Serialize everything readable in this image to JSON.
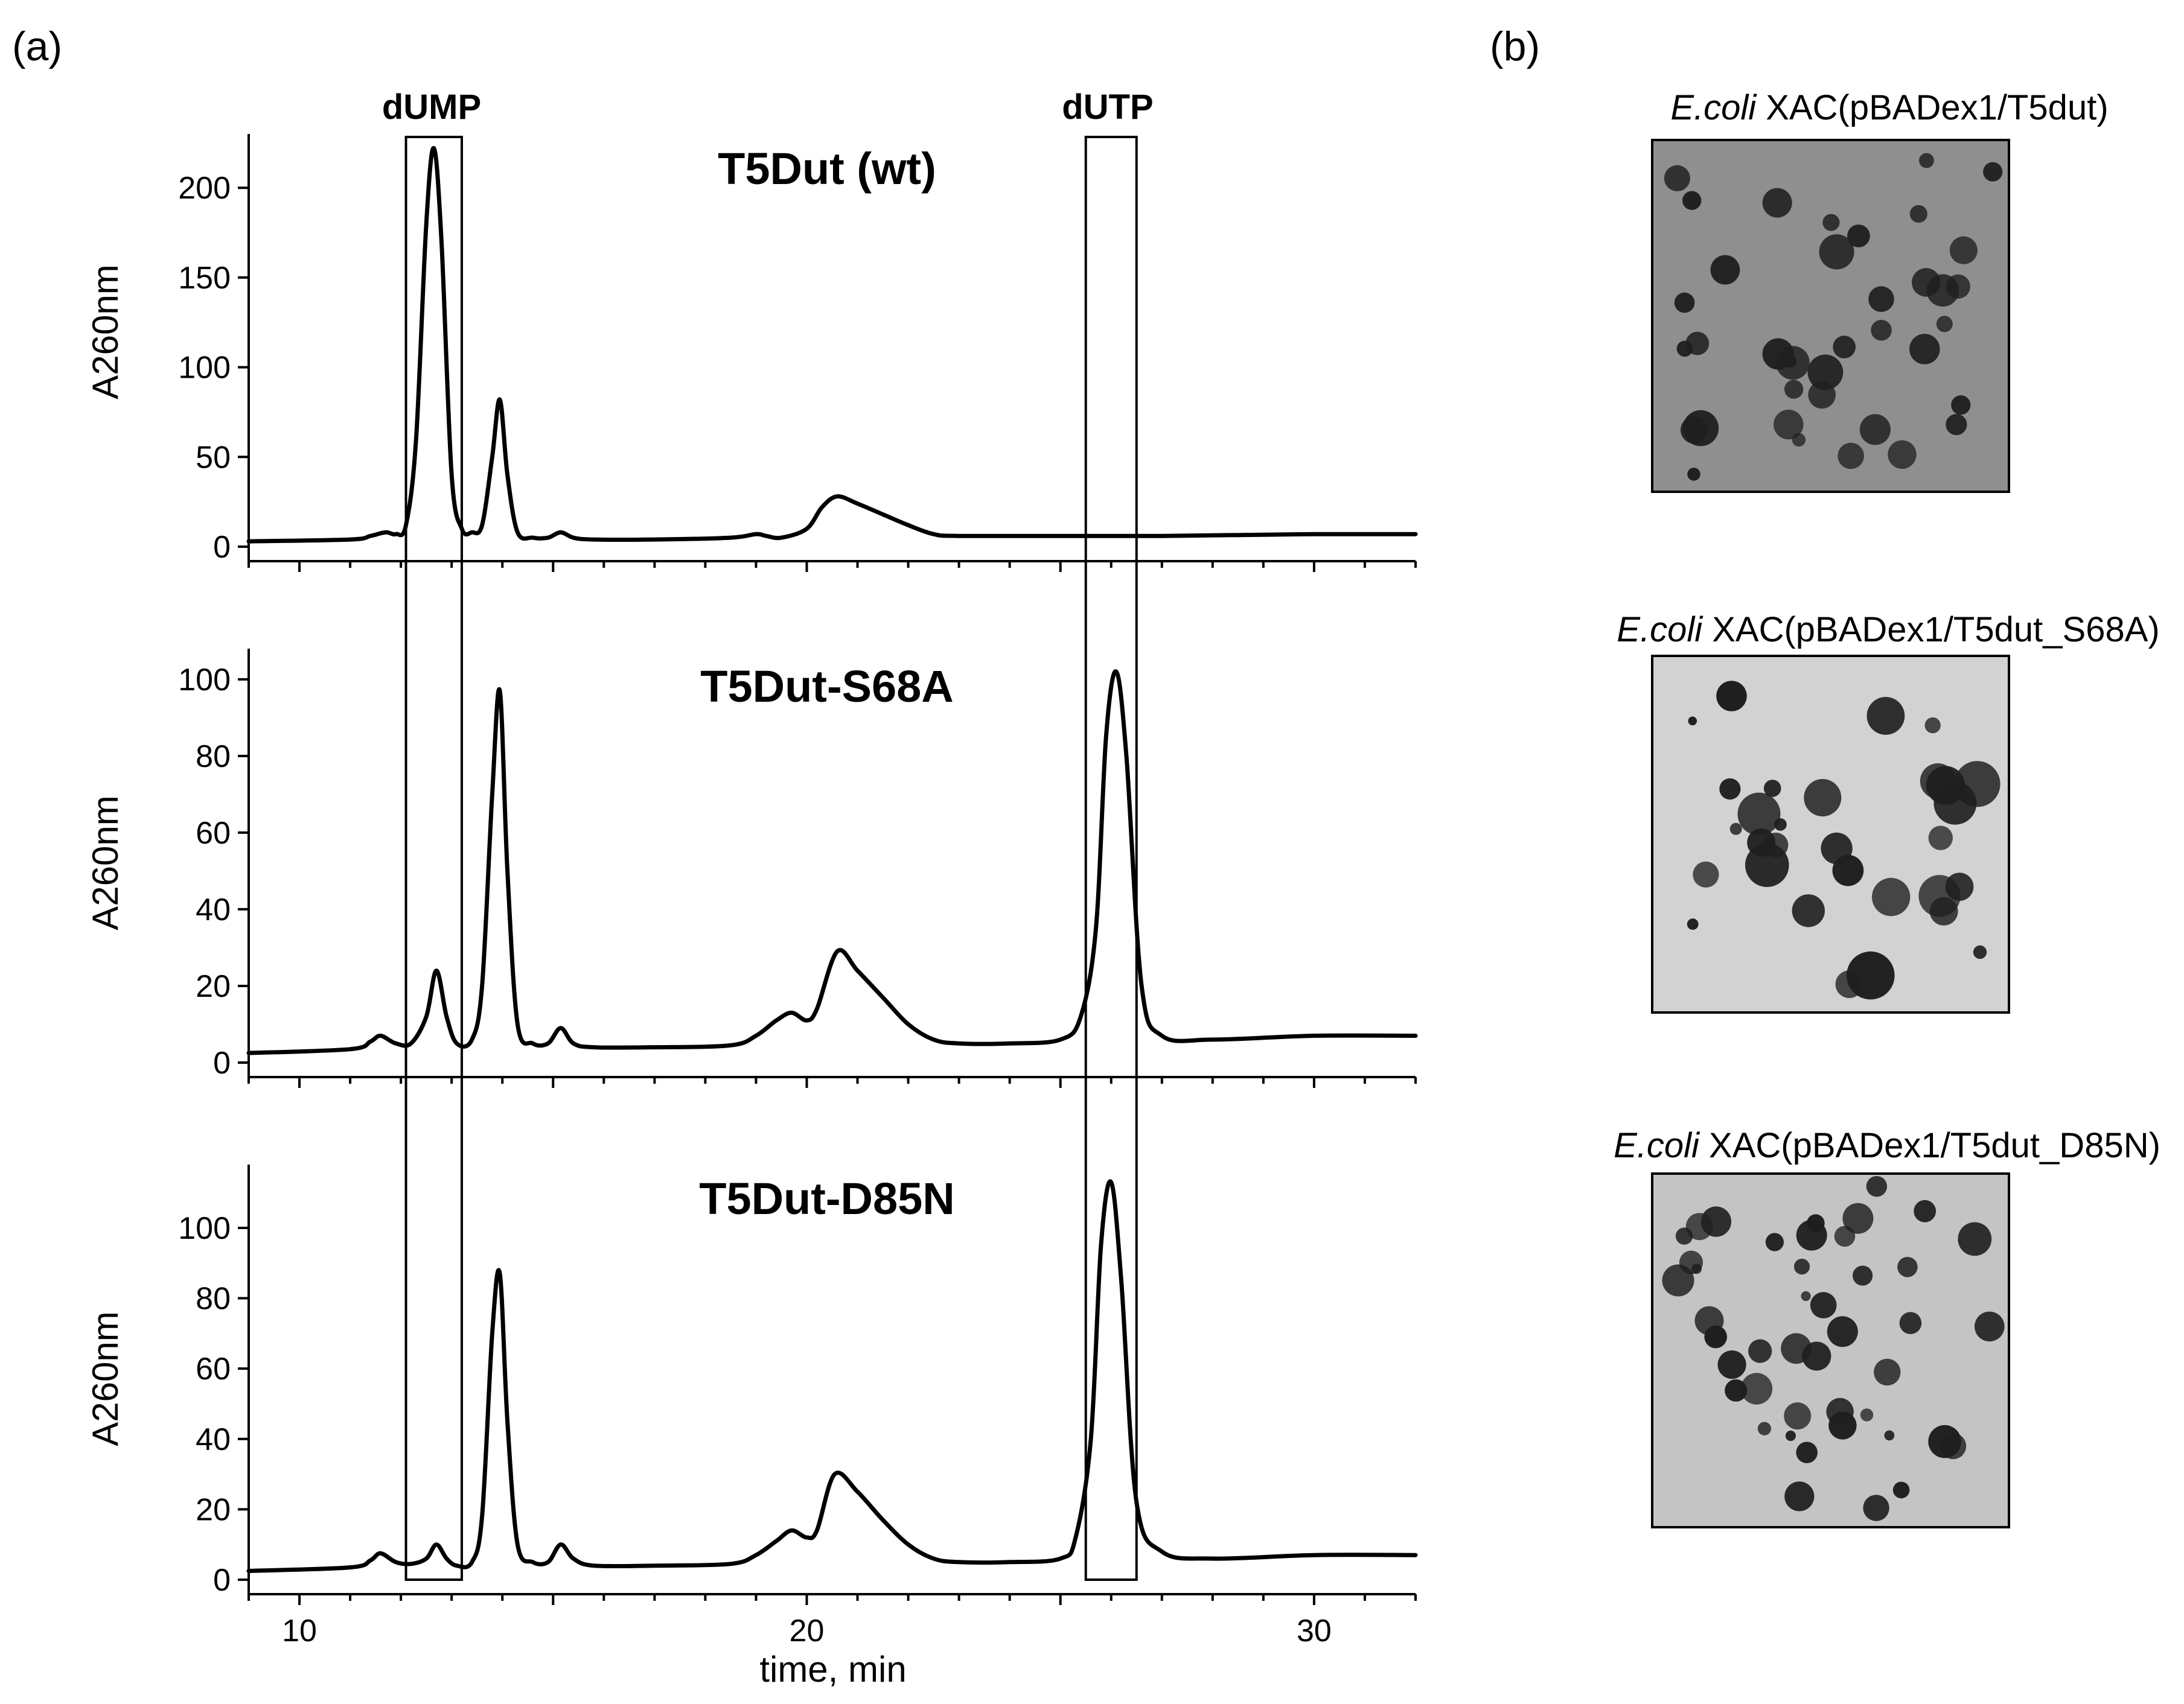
{
  "panel_a_label": "(a)",
  "panel_b_label": "(b)",
  "chart_data": [
    {
      "type": "line",
      "title": "T5Dut (wt)",
      "ylabel": "A260nm",
      "xlabel": "",
      "xlim": [
        9,
        32
      ],
      "ylim": [
        0,
        230
      ],
      "xticks": [
        10,
        20,
        30
      ],
      "yticks": [
        0,
        50,
        100,
        150,
        200
      ],
      "regions": [
        {
          "label": "dUMP",
          "x": [
            12.1,
            13.2
          ]
        },
        {
          "label": "dUTP",
          "x": [
            25.5,
            26.5
          ]
        }
      ],
      "series": [
        {
          "x": [
            9,
            11,
            11.4,
            11.7,
            11.9,
            12.1,
            12.3,
            12.5,
            12.65,
            12.8,
            13.0,
            13.2,
            13.4,
            13.6,
            13.8,
            13.95,
            14.1,
            14.3,
            14.6,
            14.9,
            15.15,
            15.4,
            15.8,
            17,
            18.5,
            19.0,
            19.2,
            19.5,
            20.0,
            20.3,
            20.6,
            21.0,
            21.5,
            22.0,
            22.5,
            23,
            25,
            27,
            30,
            32
          ],
          "y": [
            3,
            4,
            6,
            8,
            7,
            12,
            60,
            180,
            222,
            170,
            40,
            10,
            8,
            12,
            50,
            82,
            40,
            8,
            5,
            5,
            8,
            5,
            4,
            4,
            5,
            7,
            6,
            5,
            10,
            22,
            28,
            24,
            18,
            12,
            7,
            6,
            6,
            6,
            7,
            7
          ]
        }
      ]
    },
    {
      "type": "line",
      "title": "T5Dut-S68A",
      "ylabel": "A260nm",
      "xlabel": "",
      "xlim": [
        9,
        32
      ],
      "ylim": [
        0,
        108
      ],
      "xticks": [
        10,
        20,
        30
      ],
      "yticks": [
        0,
        20,
        40,
        60,
        80,
        100
      ],
      "regions": [
        {
          "label": "",
          "x": [
            12.1,
            13.2
          ]
        },
        {
          "label": "",
          "x": [
            25.5,
            26.5
          ]
        }
      ],
      "series": [
        {
          "x": [
            9,
            11,
            11.4,
            11.6,
            11.9,
            12.2,
            12.5,
            12.7,
            12.9,
            13.1,
            13.4,
            13.6,
            13.8,
            13.95,
            14.1,
            14.3,
            14.6,
            14.9,
            15.15,
            15.4,
            15.8,
            17,
            18.5,
            19.0,
            19.4,
            19.7,
            20.0,
            20.2,
            20.6,
            21.0,
            21.5,
            22.0,
            22.5,
            23,
            24,
            25,
            25.4,
            25.7,
            25.9,
            26.1,
            26.3,
            26.6,
            27,
            28,
            30,
            32
          ],
          "y": [
            2.5,
            3.5,
            5.5,
            7,
            5,
            5,
            12,
            24,
            12,
            5,
            6,
            20,
            70,
            97,
            50,
            10,
            5,
            5,
            9,
            5,
            4,
            4,
            4.5,
            7,
            11,
            13,
            11,
            14,
            29,
            24,
            17,
            10,
            6,
            5,
            5,
            6,
            12,
            35,
            85,
            102,
            80,
            20,
            7,
            6,
            7,
            7
          ]
        }
      ]
    },
    {
      "type": "line",
      "title": "T5Dut-D85N",
      "ylabel": "A260nm",
      "xlabel": "time, min",
      "xlim": [
        9,
        32
      ],
      "ylim": [
        0,
        118
      ],
      "xticks": [
        10,
        20,
        30
      ],
      "yticks": [
        0,
        20,
        40,
        60,
        80,
        100
      ],
      "regions": [
        {
          "label": "",
          "x": [
            12.1,
            13.2
          ]
        },
        {
          "label": "",
          "x": [
            25.5,
            26.5
          ]
        }
      ],
      "series": [
        {
          "x": [
            9,
            11,
            11.4,
            11.6,
            11.9,
            12.2,
            12.5,
            12.7,
            12.9,
            13.1,
            13.4,
            13.6,
            13.8,
            13.95,
            14.1,
            14.3,
            14.6,
            14.9,
            15.15,
            15.4,
            15.8,
            17,
            18.5,
            19.0,
            19.4,
            19.7,
            20.0,
            20.2,
            20.55,
            21.0,
            21.5,
            22.0,
            22.5,
            23,
            24,
            25,
            25.3,
            25.6,
            25.8,
            26.0,
            26.2,
            26.5,
            27,
            28,
            30,
            32
          ],
          "y": [
            2.5,
            3.5,
            5.5,
            7.5,
            5,
            4.5,
            6,
            10,
            6,
            4,
            5,
            18,
            70,
            87,
            45,
            10,
            5,
            5,
            10,
            6,
            4,
            4,
            4.5,
            7,
            11,
            14,
            12,
            14,
            30,
            25,
            17,
            10,
            6,
            5,
            5,
            6,
            12,
            40,
            95,
            113,
            85,
            22,
            8,
            6,
            7,
            7
          ]
        }
      ]
    }
  ],
  "plates": [
    {
      "italic": "E.coli",
      "rest": " XAC(pBADex1/T5dut)"
    },
    {
      "italic": "E.coli",
      "rest": " XAC(pBADex1/T5dut_S68A)"
    },
    {
      "italic": "E.coli",
      "rest": " XAC(pBADex1/T5dut_D85N)"
    }
  ],
  "colors": {
    "plate1_background": "#8f8f8f",
    "plate2_background": "#d2d2d2",
    "plate3_background": "#c4c4c4",
    "plaque": "#1f1f1f",
    "trace": "#000000"
  }
}
